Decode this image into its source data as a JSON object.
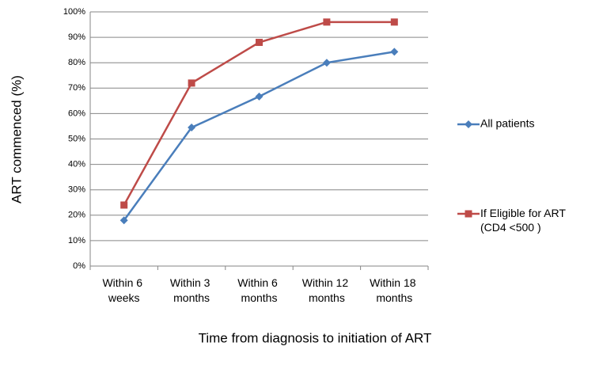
{
  "chart_data": {
    "type": "line",
    "categories": [
      "Within 6 weeks",
      "Within 3 months",
      "Within 6 months",
      "Within 12 months",
      "Within 18 months"
    ],
    "series": [
      {
        "name": "All patients",
        "color": "#4a7ebb",
        "marker": "diamond",
        "values": [
          18,
          54.5,
          66.7,
          80,
          84.3
        ]
      },
      {
        "name": "If Eligible for ART (CD4 <500 )",
        "color": "#be4b48",
        "marker": "square",
        "values": [
          24,
          72,
          88,
          96,
          96
        ]
      }
    ],
    "ylim": [
      0,
      100
    ],
    "yticks": [
      {
        "value": 0,
        "label": "0%"
      },
      {
        "value": 10,
        "label": "10%"
      },
      {
        "value": 20,
        "label": "20%"
      },
      {
        "value": 30,
        "label": "30%"
      },
      {
        "value": 40,
        "label": "40%"
      },
      {
        "value": 50,
        "label": "50%"
      },
      {
        "value": 60,
        "label": "60%"
      },
      {
        "value": 70,
        "label": "70%"
      },
      {
        "value": 80,
        "label": "80%"
      },
      {
        "value": 90,
        "label": "90%"
      },
      {
        "value": 100,
        "label": "100%"
      }
    ],
    "ylabel": "ART commenced (%)",
    "xlabel": "Time from diagnosis to initiation of ART",
    "grid": true,
    "legend": "right"
  }
}
